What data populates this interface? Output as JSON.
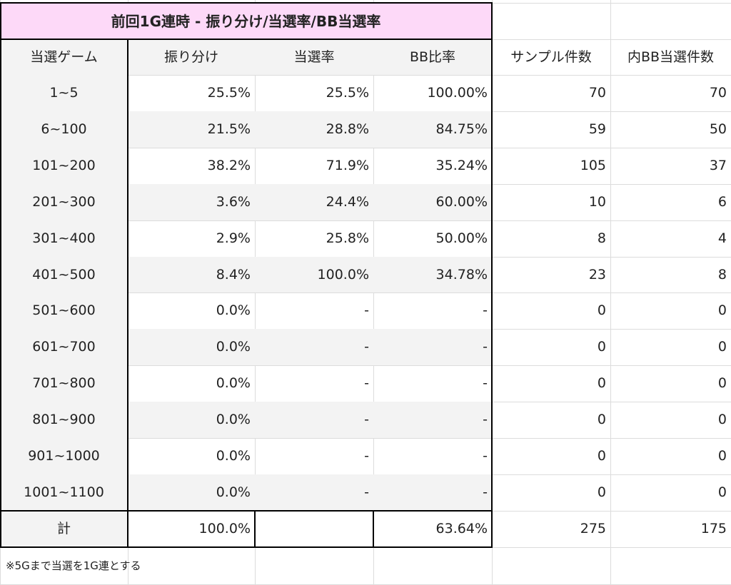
{
  "sheet": {
    "title": "前回1G連時 - 振り分け/当選率/BB当選率",
    "headers": [
      "当選ゲーム",
      "振り分け",
      "当選率",
      "BB比率",
      "サンプル件数",
      "内BB当選件数"
    ],
    "rows": [
      [
        "1~5",
        "25.5%",
        "25.5%",
        "100.00%",
        "70",
        "70"
      ],
      [
        "6~100",
        "21.5%",
        "28.8%",
        "84.75%",
        "59",
        "50"
      ],
      [
        "101~200",
        "38.2%",
        "71.9%",
        "35.24%",
        "105",
        "37"
      ],
      [
        "201~300",
        "3.6%",
        "24.4%",
        "60.00%",
        "10",
        "6"
      ],
      [
        "301~400",
        "2.9%",
        "25.8%",
        "50.00%",
        "8",
        "4"
      ],
      [
        "401~500",
        "8.4%",
        "100.0%",
        "34.78%",
        "23",
        "8"
      ],
      [
        "501~600",
        "0.0%",
        "-",
        "-",
        "0",
        "0"
      ],
      [
        "601~700",
        "0.0%",
        "-",
        "-",
        "0",
        "0"
      ],
      [
        "701~800",
        "0.0%",
        "-",
        "-",
        "0",
        "0"
      ],
      [
        "801~900",
        "0.0%",
        "-",
        "-",
        "0",
        "0"
      ],
      [
        "901~1000",
        "0.0%",
        "-",
        "-",
        "0",
        "0"
      ],
      [
        "1001~1100",
        "0.0%",
        "-",
        "-",
        "0",
        "0"
      ]
    ],
    "total": [
      "計",
      "100.0%",
      "",
      "63.64%",
      "275",
      "175"
    ],
    "note": "※5Gまで当選を1G連とする"
  },
  "colors": {
    "title_bg": "#fdd9f8",
    "shaded_bg": "#f3f3f3",
    "grid_line": "#dcdcdc",
    "border": "#000000"
  }
}
